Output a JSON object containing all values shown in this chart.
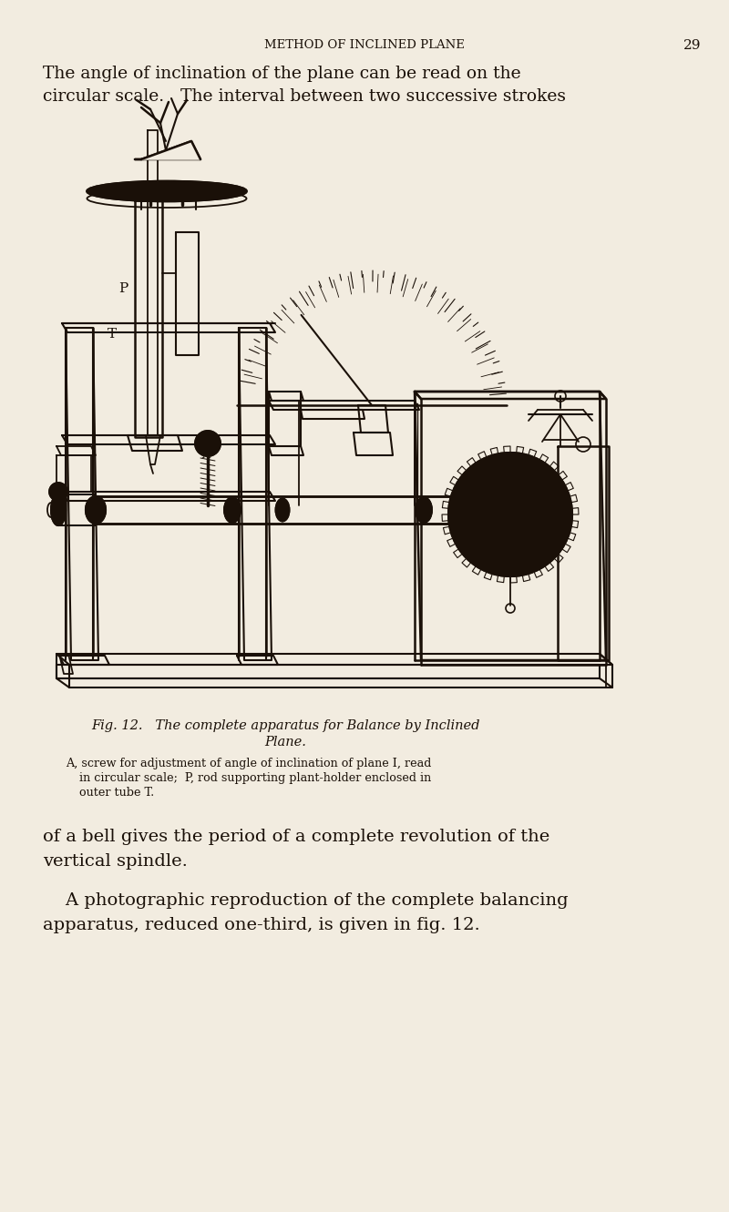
{
  "background_color": "#f2ece0",
  "page_width": 8.0,
  "page_height": 13.31,
  "dpi": 100,
  "header_text": "METHOD OF INCLINED PLANE",
  "page_number": "29",
  "top_para_line1": "The angle of inclination of the plane can be read on the",
  "top_para_line2": "circular scale.   The interval between two successive strokes",
  "fig_caption_line1": "Fig. 12.   The complete apparatus for Balance by Inclined",
  "fig_caption_line2": "Plane.",
  "fig_note_line1": "A, screw for adjustment of angle of inclination of plane I, read",
  "fig_note_line2": "in circular scale;  P, rod supporting plant-holder enclosed in",
  "fig_note_line3": "outer tube T.",
  "bottom_para1_line1": "of a bell gives the period of a complete revolution of the",
  "bottom_para1_line2": "vertical spindle.",
  "bottom_para2_line1": "    A photographic reproduction of the complete balancing",
  "bottom_para2_line2": "apparatus, reduced one-third, is given in fig. 12.",
  "text_color": "#1a1008",
  "drawing_color": "#1a1008"
}
